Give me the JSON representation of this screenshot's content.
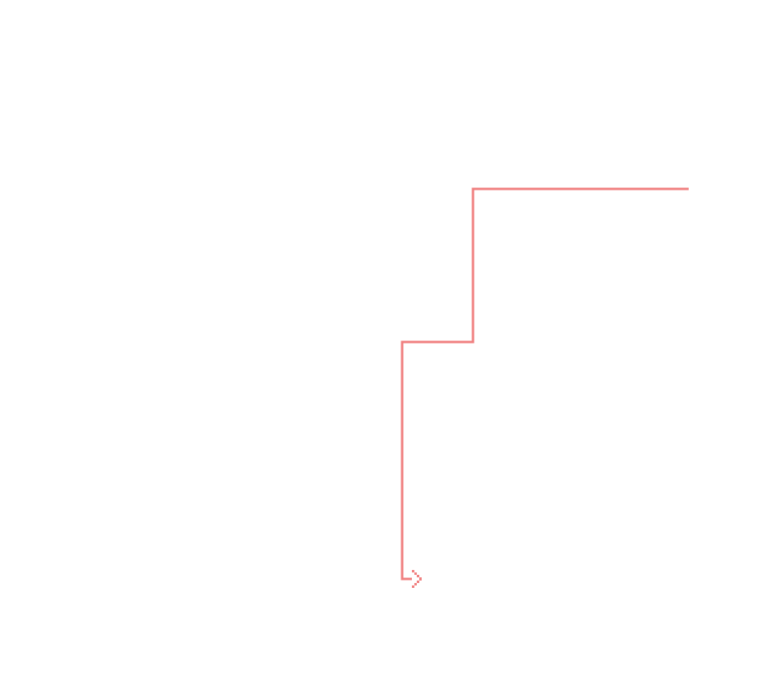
{
  "diagram": {
    "background": "#ffffff",
    "connector": {
      "color": "#f08080",
      "arrowhead": "chevron-right",
      "style": "orthogonal"
    }
  }
}
